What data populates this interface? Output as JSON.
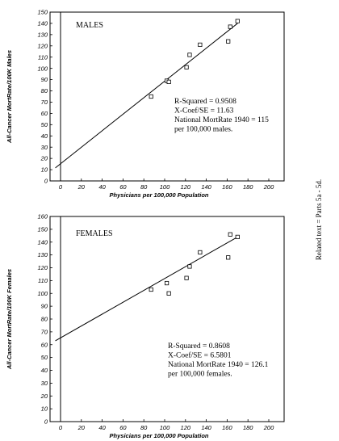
{
  "side_note": "Related text = Parts 5a - 5d.",
  "chart_data": [
    {
      "type": "scatter",
      "title": "MALES",
      "xlabel": "Physicians per 100,000 Population",
      "ylabel": "All-Cancer MortRate/100K Males",
      "xlim": [
        -10,
        210
      ],
      "ylim": [
        0,
        150
      ],
      "x_ticks": [
        "0",
        "20",
        "40",
        "60",
        "80",
        "100",
        "120",
        "140",
        "160",
        "180",
        "200"
      ],
      "y_ticks": [
        "0",
        "10",
        "20",
        "30",
        "40",
        "50",
        "60",
        "70",
        "80",
        "90",
        "100",
        "110",
        "120",
        "130",
        "140",
        "150"
      ],
      "points": [
        {
          "x": 87,
          "y": 75
        },
        {
          "x": 102,
          "y": 89
        },
        {
          "x": 104,
          "y": 88
        },
        {
          "x": 121,
          "y": 101
        },
        {
          "x": 124,
          "y": 112
        },
        {
          "x": 134,
          "y": 121
        },
        {
          "x": 161,
          "y": 124
        },
        {
          "x": 163,
          "y": 137
        },
        {
          "x": 170,
          "y": 142
        }
      ],
      "fit_line": {
        "x": [
          -5,
          170
        ],
        "y": [
          11.6,
          140
        ]
      },
      "stats": [
        "R-Squared = 0.9508",
        "X-Coef/SE = 11.63",
        "National MortRate 1940 = 115",
        "per 100,000 males."
      ]
    },
    {
      "type": "scatter",
      "title": "FEMALES",
      "xlabel": "Physicians per 100,000 Population",
      "ylabel": "All-Cancer MortRate/100K Females",
      "xlim": [
        -10,
        210
      ],
      "ylim": [
        0,
        160
      ],
      "x_ticks": [
        "0",
        "20",
        "40",
        "60",
        "80",
        "100",
        "120",
        "140",
        "160",
        "180",
        "200"
      ],
      "y_ticks": [
        "0",
        "10",
        "20",
        "30",
        "40",
        "50",
        "60",
        "70",
        "80",
        "90",
        "100",
        "110",
        "120",
        "130",
        "140",
        "150",
        "160"
      ],
      "points": [
        {
          "x": 87,
          "y": 103
        },
        {
          "x": 102,
          "y": 108
        },
        {
          "x": 104,
          "y": 100
        },
        {
          "x": 121,
          "y": 112
        },
        {
          "x": 124,
          "y": 121
        },
        {
          "x": 134,
          "y": 132
        },
        {
          "x": 161,
          "y": 128
        },
        {
          "x": 163,
          "y": 146
        },
        {
          "x": 170,
          "y": 144
        }
      ],
      "fit_line": {
        "x": [
          -5,
          170
        ],
        "y": [
          63,
          144
        ]
      },
      "stats": [
        "R-Squared = 0.8608",
        "X-Coef/SE = 6.5801",
        "National MortRate 1940 = 126.1",
        "per 100,000 females."
      ]
    }
  ]
}
